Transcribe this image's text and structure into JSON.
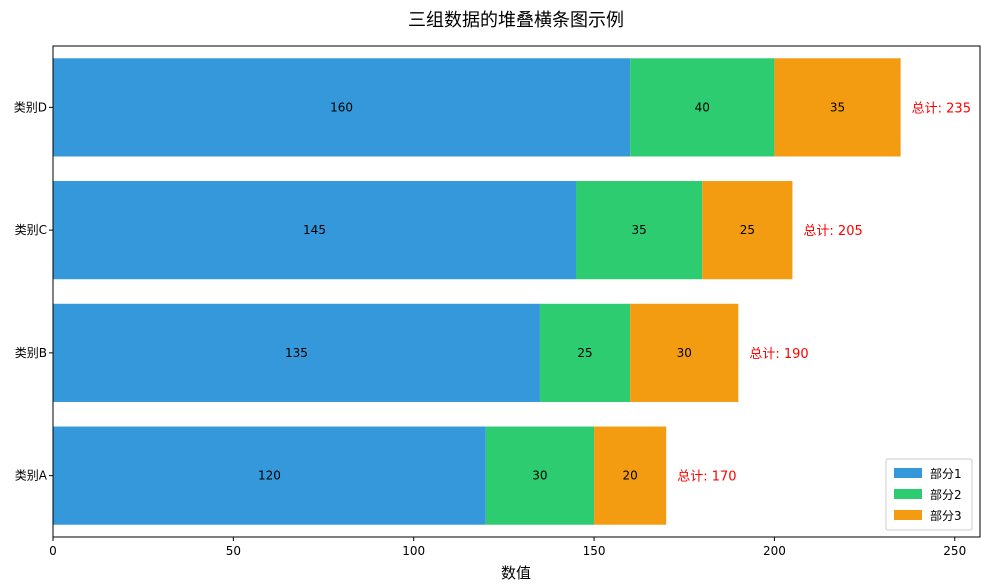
{
  "chart_data": {
    "type": "bar",
    "orientation": "horizontal",
    "stacked": true,
    "title": "三组数据的堆叠横条图示例",
    "xlabel": "数值",
    "ylabel": "",
    "xlim": [
      0,
      257
    ],
    "xticks": [
      0,
      50,
      100,
      150,
      200,
      250
    ],
    "categories": [
      "类别A",
      "类别B",
      "类别C",
      "类别D"
    ],
    "series": [
      {
        "name": "部分1",
        "color": "#3498db",
        "values": [
          120,
          135,
          145,
          160
        ]
      },
      {
        "name": "部分2",
        "color": "#2ecc71",
        "values": [
          30,
          25,
          35,
          40
        ]
      },
      {
        "name": "部分3",
        "color": "#f39c12",
        "values": [
          20,
          30,
          25,
          35
        ]
      }
    ],
    "total_prefix": "总计: ",
    "totals": [
      170,
      190,
      205,
      235
    ],
    "total_color": "#ff0000",
    "legend_position": "lower-right",
    "grid": false
  }
}
